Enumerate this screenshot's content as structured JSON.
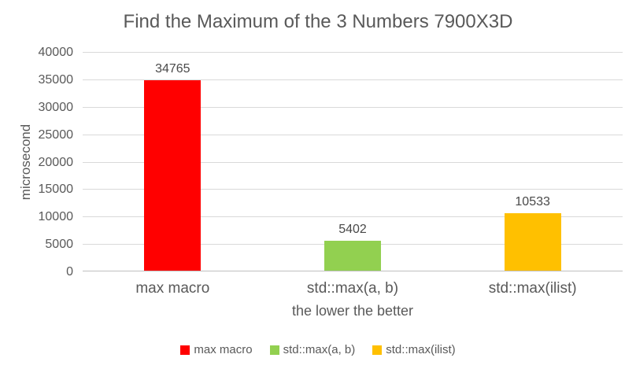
{
  "chart_data": {
    "type": "bar",
    "title": "Find the Maximum of the 3 Numbers 7900X3D",
    "categories": [
      "max macro",
      "std::max(a, b)",
      "std::max(ilist)"
    ],
    "values": [
      34765,
      5402,
      10533
    ],
    "bar_colors": [
      "#ff0000",
      "#92d050",
      "#ffc000"
    ],
    "data_labels": [
      "34765",
      "5402",
      "10533"
    ],
    "xlabel": "the lower the better",
    "ylabel": "microsecond",
    "ylim": [
      0,
      40000
    ],
    "yticks": [
      0,
      5000,
      10000,
      15000,
      20000,
      25000,
      30000,
      35000,
      40000
    ],
    "grid": true,
    "legend_position": "bottom",
    "legend": [
      {
        "label": "max macro",
        "color": "#ff0000"
      },
      {
        "label": "std::max(a, b)",
        "color": "#92d050"
      },
      {
        "label": "std::max(ilist)",
        "color": "#ffc000"
      }
    ],
    "colors": {
      "text": "#595959",
      "data_label_text": "#494949",
      "gridline": "#d9d9d9",
      "axis_line": "#bfbfbf",
      "background": "#ffffff"
    }
  }
}
